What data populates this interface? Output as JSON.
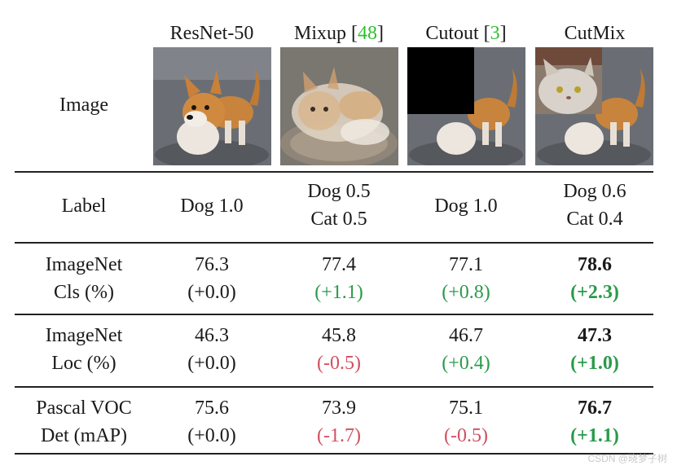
{
  "table": {
    "columns": [
      {
        "name": "ResNet-50",
        "ref": ""
      },
      {
        "name": "Mixup [",
        "ref": "48",
        "close": "]"
      },
      {
        "name": "Cutout [",
        "ref": "3",
        "close": "]"
      },
      {
        "name": "CutMix",
        "ref": ""
      }
    ],
    "rows": {
      "image": {
        "label": "Image"
      },
      "label": {
        "label": "Label",
        "cells": [
          [
            "Dog 1.0"
          ],
          [
            "Dog 0.5",
            "Cat 0.5"
          ],
          [
            "Dog 1.0"
          ],
          [
            "Dog 0.6",
            "Cat 0.4"
          ]
        ]
      },
      "cls": {
        "label_line1": "ImageNet",
        "label_line2": "Cls (%)",
        "values": [
          "76.3",
          "77.4",
          "77.1",
          "78.6"
        ],
        "deltas": [
          "(+0.0)",
          "(+1.1)",
          "(+0.8)",
          "(+2.3)"
        ]
      },
      "loc": {
        "label_line1": "ImageNet",
        "label_line2": "Loc (%)",
        "values": [
          "46.3",
          "45.8",
          "46.7",
          "47.3"
        ],
        "deltas": [
          "(+0.0)",
          "(-0.5)",
          "(+0.4)",
          "(+1.0)"
        ]
      },
      "det": {
        "label_line1": "Pascal VOC",
        "label_line2": "Det (mAP)",
        "values": [
          "75.6",
          "73.9",
          "75.1",
          "76.7"
        ],
        "deltas": [
          "(+0.0)",
          "(-1.7)",
          "(-0.5)",
          "(+1.1)"
        ]
      }
    }
  },
  "watermark": "CSDN @晓梦子树",
  "colors": {
    "positive": "#2a9a4a",
    "negative": "#d0505f",
    "reference": "#2fbf2f"
  }
}
